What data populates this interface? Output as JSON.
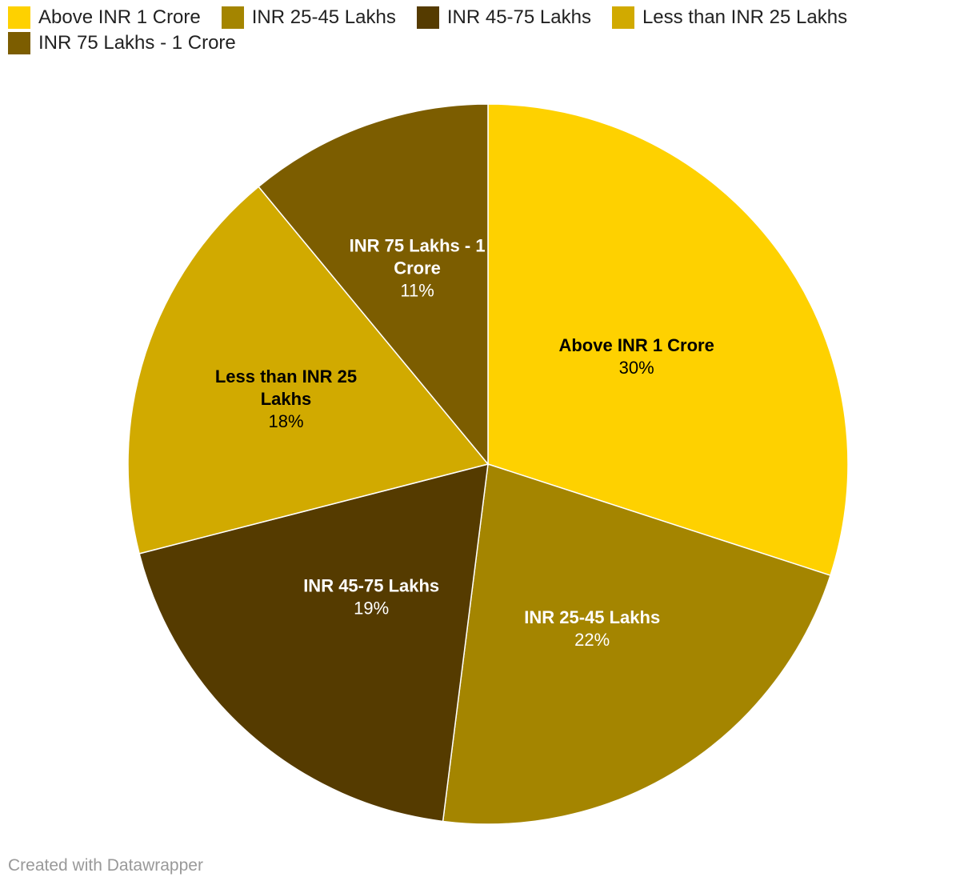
{
  "chart_data": {
    "type": "pie",
    "title": "",
    "series": [
      {
        "name": "Above INR 1 Crore",
        "value": 30,
        "label": "30%",
        "color": "#fed100",
        "label_color": "#000000"
      },
      {
        "name": "INR 25-45 Lakhs",
        "value": 22,
        "label": "22%",
        "color": "#a48500",
        "label_color": "#ffffff"
      },
      {
        "name": "INR 45-75 Lakhs",
        "value": 19,
        "label": "19%",
        "color": "#553b00",
        "label_color": "#ffffff"
      },
      {
        "name": "Less than INR 25 Lakhs",
        "value": 18,
        "label": "18%",
        "color": "#d1aa00",
        "label_color": "#000000"
      },
      {
        "name": "INR 75 Lakhs - 1 Crore",
        "value": 11,
        "label": "11%",
        "color": "#7c5d00",
        "label_color": "#ffffff"
      }
    ],
    "slice_labels": [
      {
        "lines": [
          "Above INR 1 Crore"
        ],
        "value": "30%"
      },
      {
        "lines": [
          "INR 25-45 Lakhs"
        ],
        "value": "22%"
      },
      {
        "lines": [
          "INR 45-75 Lakhs"
        ],
        "value": "19%"
      },
      {
        "lines": [
          "Less than INR 25",
          "Lakhs"
        ],
        "value": "18%"
      },
      {
        "lines": [
          "INR 75 Lakhs - 1",
          "Crore"
        ],
        "value": "11%"
      }
    ],
    "legend": {
      "placement": "top-left",
      "items": [
        "Above INR 1 Crore",
        "INR 25-45 Lakhs",
        "INR 45-75 Lakhs",
        "Less than INR 25 Lakhs",
        "INR 75 Lakhs - 1 Crore"
      ]
    },
    "start": "12 o'clock",
    "direction": "clockwise"
  },
  "footer": {
    "credit": "Created with Datawrapper"
  }
}
